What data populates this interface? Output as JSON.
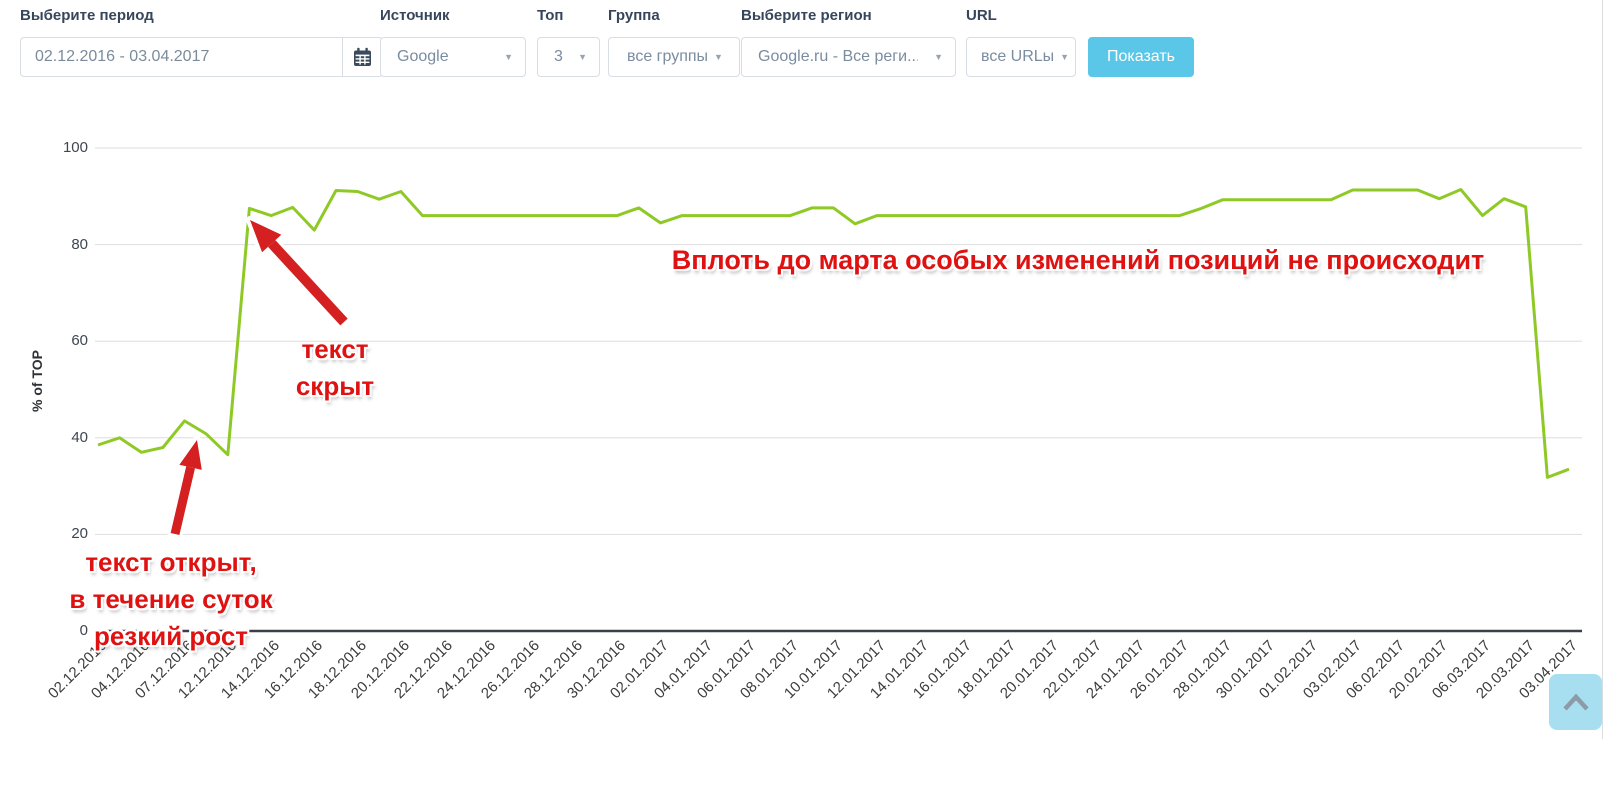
{
  "toolbar": {
    "period": {
      "label": "Выберите период",
      "value": "02.12.2016 - 03.04.2017"
    },
    "source": {
      "label": "Источник",
      "value": "Google"
    },
    "top": {
      "label": "Топ",
      "value": "3"
    },
    "group": {
      "label": "Группа",
      "value": "все группы"
    },
    "region": {
      "label": "Выберите регион",
      "value": "Google.ru - Все реги..."
    },
    "url": {
      "label": "URL",
      "value": "все URLы"
    },
    "show_button": "Показать"
  },
  "chart_data": {
    "type": "line",
    "title": "",
    "xlabel": "",
    "ylabel": "% of TOP",
    "ylim": [
      0,
      100
    ],
    "yticks": [
      0,
      20,
      40,
      60,
      80,
      100
    ],
    "grid": true,
    "legend_position": "none",
    "x_label_every": 2,
    "x_labels": [
      "02.12.2016",
      "04.12.2016",
      "07.12.2016",
      "12.12.2016",
      "14.12.2016",
      "16.12.2016",
      "18.12.2016",
      "20.12.2016",
      "22.12.2016",
      "24.12.2016",
      "26.12.2016",
      "28.12.2016",
      "30.12.2016",
      "02.01.2017",
      "04.01.2017",
      "06.01.2017",
      "08.01.2017",
      "10.01.2017",
      "12.01.2017",
      "14.01.2017",
      "16.01.2017",
      "18.01.2017",
      "20.01.2017",
      "22.01.2017",
      "24.01.2017",
      "26.01.2017",
      "28.01.2017",
      "30.01.2017",
      "01.02.2017",
      "03.02.2017",
      "06.02.2017",
      "20.02.2017",
      "06.03.2017",
      "20.03.2017",
      "03.04.2017"
    ],
    "series": [
      {
        "name": "% of TOP3",
        "color": "#8FC926",
        "values": [
          38.5,
          40,
          37,
          38,
          43.5,
          40.8,
          36.5,
          87.5,
          86,
          87.7,
          83,
          91.2,
          91,
          89.4,
          91,
          86,
          86,
          86,
          86,
          86,
          86,
          86,
          86,
          86,
          86,
          87.6,
          84.5,
          86,
          86,
          86,
          86,
          86,
          86,
          87.6,
          87.6,
          84.3,
          86,
          86,
          86,
          86,
          86,
          86,
          86,
          86,
          86,
          86,
          86,
          86,
          86,
          86,
          86,
          87.5,
          89.3,
          89.3,
          89.3,
          89.3,
          89.3,
          89.3,
          91.3,
          91.3,
          91.3,
          91.3,
          89.5,
          91.4,
          86,
          89.5,
          87.8,
          31.8,
          33.5
        ]
      }
    ]
  },
  "annotations": {
    "flat_note": "Вплоть до марта особых изменений позиций не происходит",
    "hidden_note": [
      "текст",
      "скрыт"
    ],
    "open_note": [
      "текст открыт,",
      "в течение суток",
      "резкий рост"
    ]
  },
  "colors": {
    "line_green": "#8FC926",
    "annotation_red": "#DF1111",
    "arrow_red": "#D42020",
    "button_cyan": "#5AC7E8",
    "scroll_button_blue": "#A7DFF1"
  },
  "icons": {
    "calendar": "calendar-icon",
    "select_arrow": "chevron-down-icon",
    "scroll_top": "chevron-up-icon"
  }
}
